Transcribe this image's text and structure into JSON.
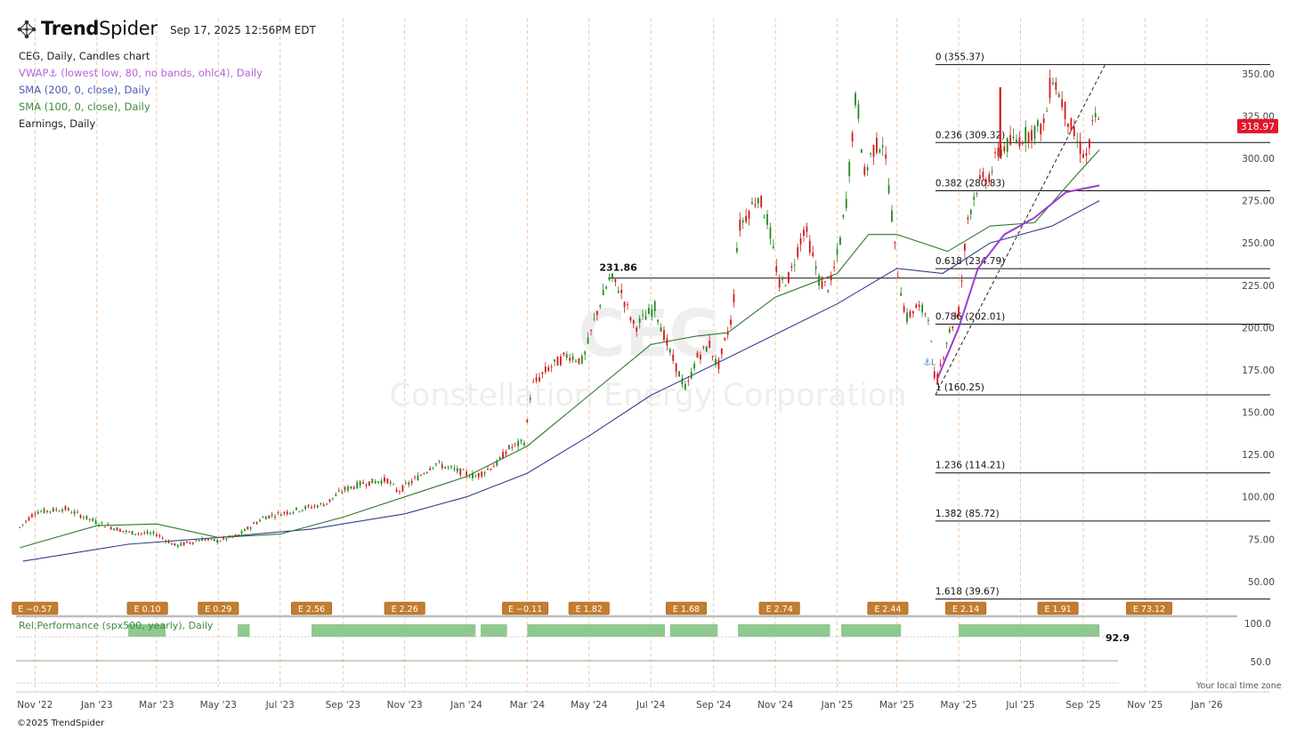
{
  "brand": {
    "name_bold": "Trend",
    "name_light": "Spider",
    "logo_icon": "network-nodes-icon"
  },
  "timestamp": "Sep 17, 2025 12:56PM EDT",
  "legend": [
    {
      "text": "CEG, Daily, Candles chart",
      "color": "#222222"
    },
    {
      "text": "VWAP⚓ (lowest low, 80, no bands, ohlc4), Daily",
      "color": "#b566d6"
    },
    {
      "text": "SMA (200, 0, close), Daily",
      "color": "#4a5bb5"
    },
    {
      "text": "SMA (100, 0, close), Daily",
      "color": "#3e8a3e"
    },
    {
      "text": "Earnings, Daily",
      "color": "#222222"
    }
  ],
  "footer": "©2025 TrendSpider",
  "timezone_note": "Your local time zone",
  "chart_data": {
    "type": "candlestick",
    "symbol": "CEG",
    "watermark_ticker": "CEG",
    "watermark_name": "Constellation Energy Corporation",
    "last_price_label": "318.97",
    "last_price": 318.97,
    "ylim": [
      30,
      362
    ],
    "y_ticks": [
      50,
      75,
      100,
      125,
      150,
      175,
      200,
      225,
      250,
      275,
      300,
      325,
      350
    ],
    "y_tick_labels": [
      "50.00",
      "75.00",
      "100.00",
      "125.00",
      "150.00",
      "175.00",
      "200.00",
      "225.00",
      "250.00",
      "275.00",
      "300.00",
      "325.00",
      "350.00"
    ],
    "x_ticks": [
      "2022-11-01",
      "2023-01-01",
      "2023-03-01",
      "2023-05-01",
      "2023-07-01",
      "2023-09-01",
      "2023-11-01",
      "2024-01-01",
      "2024-03-01",
      "2024-05-01",
      "2024-07-01",
      "2024-09-01",
      "2024-11-01",
      "2025-01-01",
      "2025-03-01",
      "2025-05-01",
      "2025-07-01",
      "2025-09-01",
      "2025-11-01",
      "2026-01-01"
    ],
    "x_tick_labels": [
      "Nov '22",
      "Jan '23",
      "Mar '23",
      "May '23",
      "Jul '23",
      "Sep '23",
      "Nov '23",
      "Jan '24",
      "Mar '24",
      "May '24",
      "Jul '24",
      "Sep '24",
      "Nov '24",
      "Jan '25",
      "Mar '25",
      "May '25",
      "Jul '25",
      "Sep '25",
      "Nov '25",
      "Jan '26"
    ],
    "x_range": [
      "2022-10-15",
      "2026-01-31"
    ],
    "price_path": [
      [
        "2022-10-17",
        82
      ],
      [
        "2022-11-01",
        91
      ],
      [
        "2022-12-01",
        93
      ],
      [
        "2023-01-01",
        85
      ],
      [
        "2023-02-01",
        79
      ],
      [
        "2023-03-01",
        78
      ],
      [
        "2023-03-20",
        71
      ],
      [
        "2023-04-15",
        75
      ],
      [
        "2023-05-01",
        74
      ],
      [
        "2023-05-20",
        77
      ],
      [
        "2023-06-15",
        88
      ],
      [
        "2023-07-15",
        92
      ],
      [
        "2023-08-15",
        96
      ],
      [
        "2023-09-01",
        104
      ],
      [
        "2023-09-20",
        108
      ],
      [
        "2023-10-15",
        110
      ],
      [
        "2023-10-25",
        103
      ],
      [
        "2023-11-15",
        112
      ],
      [
        "2023-12-01",
        120
      ],
      [
        "2023-12-20",
        116
      ],
      [
        "2024-01-10",
        112
      ],
      [
        "2024-02-01",
        120
      ],
      [
        "2024-02-10",
        128
      ],
      [
        "2024-02-28",
        133
      ],
      [
        "2024-03-05",
        165
      ],
      [
        "2024-03-20",
        175
      ],
      [
        "2024-04-10",
        184
      ],
      [
        "2024-04-25",
        180
      ],
      [
        "2024-05-08",
        208
      ],
      [
        "2024-05-22",
        230
      ],
      [
        "2024-06-01",
        222
      ],
      [
        "2024-06-15",
        200
      ],
      [
        "2024-07-05",
        212
      ],
      [
        "2024-07-20",
        185
      ],
      [
        "2024-08-05",
        163
      ],
      [
        "2024-08-15",
        182
      ],
      [
        "2024-08-28",
        190
      ],
      [
        "2024-09-05",
        176
      ],
      [
        "2024-09-20",
        208
      ],
      [
        "2024-09-25",
        258
      ],
      [
        "2024-10-05",
        268
      ],
      [
        "2024-10-15",
        278
      ],
      [
        "2024-10-25",
        262
      ],
      [
        "2024-11-05",
        225
      ],
      [
        "2024-11-15",
        230
      ],
      [
        "2024-11-30",
        260
      ],
      [
        "2024-12-15",
        226
      ],
      [
        "2024-12-25",
        224
      ],
      [
        "2025-01-03",
        248
      ],
      [
        "2025-01-10",
        275
      ],
      [
        "2025-01-20",
        340
      ],
      [
        "2025-01-28",
        290
      ],
      [
        "2025-02-05",
        305
      ],
      [
        "2025-02-15",
        310
      ],
      [
        "2025-02-22",
        280
      ],
      [
        "2025-02-28",
        240
      ],
      [
        "2025-03-10",
        205
      ],
      [
        "2025-03-20",
        212
      ],
      [
        "2025-04-01",
        208
      ],
      [
        "2025-04-08",
        165
      ],
      [
        "2025-04-20",
        195
      ],
      [
        "2025-05-01",
        210
      ],
      [
        "2025-05-10",
        265
      ],
      [
        "2025-05-20",
        285
      ],
      [
        "2025-06-01",
        290
      ],
      [
        "2025-06-10",
        305
      ],
      [
        "2025-06-25",
        310
      ],
      [
        "2025-07-10",
        315
      ],
      [
        "2025-07-25",
        320
      ],
      [
        "2025-08-01",
        350
      ],
      [
        "2025-08-10",
        335
      ],
      [
        "2025-08-25",
        310
      ],
      [
        "2025-09-05",
        300
      ],
      [
        "2025-09-12",
        325
      ],
      [
        "2025-09-17",
        318.97
      ]
    ],
    "sma_200": [
      [
        "2022-10-20",
        62
      ],
      [
        "2023-02-01",
        72
      ],
      [
        "2023-05-01",
        76
      ],
      [
        "2023-08-01",
        81
      ],
      [
        "2023-11-01",
        90
      ],
      [
        "2024-01-01",
        100
      ],
      [
        "2024-03-01",
        114
      ],
      [
        "2024-05-01",
        136
      ],
      [
        "2024-07-01",
        160
      ],
      [
        "2024-09-01",
        178
      ],
      [
        "2024-11-01",
        196
      ],
      [
        "2025-01-01",
        214
      ],
      [
        "2025-03-01",
        235
      ],
      [
        "2025-04-15",
        232
      ],
      [
        "2025-06-01",
        250
      ],
      [
        "2025-08-01",
        260
      ],
      [
        "2025-09-17",
        275
      ]
    ],
    "sma_100": [
      [
        "2022-10-17",
        70
      ],
      [
        "2023-01-01",
        83
      ],
      [
        "2023-03-01",
        84
      ],
      [
        "2023-05-01",
        76
      ],
      [
        "2023-07-01",
        78
      ],
      [
        "2023-09-01",
        88
      ],
      [
        "2023-11-01",
        100
      ],
      [
        "2024-01-01",
        112
      ],
      [
        "2024-03-01",
        130
      ],
      [
        "2024-05-01",
        160
      ],
      [
        "2024-07-01",
        190
      ],
      [
        "2024-08-15",
        195
      ],
      [
        "2024-09-15",
        197
      ],
      [
        "2024-11-01",
        218
      ],
      [
        "2025-01-01",
        232
      ],
      [
        "2025-02-01",
        255
      ],
      [
        "2025-03-01",
        255
      ],
      [
        "2025-04-20",
        245
      ],
      [
        "2025-06-01",
        260
      ],
      [
        "2025-07-15",
        262
      ],
      [
        "2025-08-25",
        290
      ],
      [
        "2025-09-17",
        305
      ]
    ],
    "vwap": [
      [
        "2025-04-10",
        170
      ],
      [
        "2025-05-01",
        200
      ],
      [
        "2025-05-20",
        235
      ],
      [
        "2025-06-15",
        255
      ],
      [
        "2025-07-15",
        265
      ],
      [
        "2025-08-15",
        280
      ],
      [
        "2025-09-17",
        284
      ]
    ],
    "vwap_anchor_label": "⚓L",
    "trendline": {
      "from": [
        "2025-04-08",
        160.25
      ],
      "to": [
        "2025-09-17",
        355
      ]
    },
    "resistance_line": {
      "value": 231.86,
      "label": "231.86",
      "from": "2024-05-20"
    },
    "fib_levels": [
      {
        "ratio": "0",
        "value": 355.37,
        "label": "0 (355.37)"
      },
      {
        "ratio": "0.236",
        "value": 309.32,
        "label": "0.236 (309.32)"
      },
      {
        "ratio": "0.382",
        "value": 280.83,
        "label": "0.382 (280.83)"
      },
      {
        "ratio": "0.618",
        "value": 234.79,
        "label": "0.618 (234.79)"
      },
      {
        "ratio": "0.786",
        "value": 202.01,
        "label": "0.786 (202.01)"
      },
      {
        "ratio": "1",
        "value": 160.25,
        "label": "1 (160.25)"
      },
      {
        "ratio": "1.236",
        "value": 114.21,
        "label": "1.236 (114.21)"
      },
      {
        "ratio": "1.382",
        "value": 85.72,
        "label": "1.382 (85.72)"
      },
      {
        "ratio": "1.618",
        "value": 39.67,
        "label": "1.618 (39.67)"
      }
    ],
    "fib_start": "2025-04-08",
    "earnings": [
      {
        "date": "2022-11-01",
        "label": "E −0.57"
      },
      {
        "date": "2023-02-20",
        "label": "E 0.10"
      },
      {
        "date": "2023-05-01",
        "label": "E 0.29"
      },
      {
        "date": "2023-08-01",
        "label": "E 2.56"
      },
      {
        "date": "2023-11-01",
        "label": "E 2.26"
      },
      {
        "date": "2024-02-28",
        "label": "E −0.11"
      },
      {
        "date": "2024-05-01",
        "label": "E 1.82"
      },
      {
        "date": "2024-08-05",
        "label": "E 1.68"
      },
      {
        "date": "2024-11-05",
        "label": "E 2.74"
      },
      {
        "date": "2025-02-20",
        "label": "E 2.44"
      },
      {
        "date": "2025-05-08",
        "label": "E 2.14"
      },
      {
        "date": "2025-08-07",
        "label": "E 1.91"
      },
      {
        "date": "2025-11-05",
        "label": "E 73.12"
      }
    ],
    "rel_performance": {
      "label": "Rel.Performance (spx500, yearly), Daily",
      "last_value": "92.9",
      "y_ticks": [
        50,
        100
      ],
      "y_tick_labels": [
        "50.0",
        "100.0"
      ],
      "segments": [
        [
          "2023-02-01",
          "2023-03-10"
        ],
        [
          "2023-05-20",
          "2023-06-01"
        ],
        [
          "2023-08-01",
          "2024-01-10"
        ],
        [
          "2024-01-15",
          "2024-02-10"
        ],
        [
          "2024-03-01",
          "2024-07-15"
        ],
        [
          "2024-07-20",
          "2024-09-05"
        ],
        [
          "2024-09-25",
          "2024-12-25"
        ],
        [
          "2025-01-05",
          "2025-03-05"
        ],
        [
          "2025-05-01",
          "2025-09-17"
        ]
      ]
    }
  }
}
